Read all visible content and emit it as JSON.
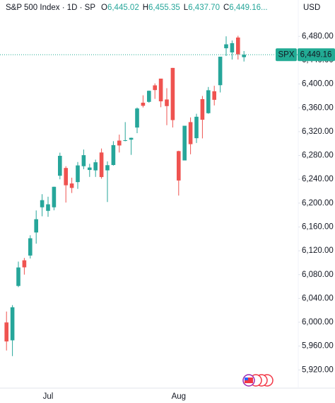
{
  "header": {
    "symbol": "S&P 500 Index · 1D · SP",
    "ohlc": [
      {
        "key": "O",
        "value": "6,445.02"
      },
      {
        "key": "H",
        "value": "6,455.35"
      },
      {
        "key": "L",
        "value": "6,437.70"
      },
      {
        "key": "C",
        "value": "6,449.16..."
      }
    ],
    "currency": "USD"
  },
  "chart_data": {
    "type": "candlestick",
    "categories": [
      null,
      null,
      null,
      null,
      null,
      null,
      null,
      "Jul",
      null,
      null,
      null,
      null,
      null,
      null,
      null,
      null,
      null,
      null,
      null,
      null,
      null,
      null,
      null,
      null,
      null,
      null,
      null,
      null,
      null,
      "Aug",
      null,
      null,
      null,
      null,
      null,
      null,
      null,
      null,
      null,
      null,
      null
    ],
    "open": [
      5999.7,
      5969.7,
      6061,
      6104,
      6112,
      6150.7,
      6193,
      6187,
      6193,
      6246,
      6259,
      6233,
      6235.3,
      6262,
      6255.7,
      6255,
      6285,
      6255,
      6264,
      6305,
      6304.7,
      6306.6,
      6326.9,
      6368.6,
      6370,
      6397.7,
      6409,
      6374,
      6427,
      6287.3,
      6271.7,
      6336,
      6309,
      6374.6,
      6351,
      6387.8,
      6398,
      6460,
      6453,
      6478,
      6445.02
    ],
    "high": [
      6018,
      6028.8,
      6101.8,
      6108,
      6146,
      6187.7,
      6215,
      6210.8,
      6227.6,
      6284.7,
      6262,
      6242.7,
      6269,
      6290,
      6266,
      6273,
      6291.7,
      6270,
      6304,
      6315,
      6336,
      6310,
      6360.6,
      6381,
      6389,
      6401,
      6409,
      6393,
      6427,
      6288,
      6329,
      6343.9,
      6350,
      6379.9,
      6395,
      6397,
      6445.8,
      6480,
      6473,
      6481,
      6455.35
    ],
    "low": [
      5952.6,
      5943.2,
      6059,
      6080,
      6107,
      6132,
      6177.9,
      6177,
      6188,
      6240,
      6201,
      6217,
      6224,
      6257,
      6244,
      6244,
      6241,
      6201.8,
      6263,
      6285,
      6303.8,
      6281,
      6317.5,
      6360.6,
      6368.6,
      6375,
      6361,
      6330.9,
      6327,
      6212.7,
      6271.7,
      6282,
      6300.9,
      6308.7,
      6350,
      6364,
      6385.8,
      6447,
      6441,
      6441,
      6437.7
    ],
    "close": [
      5967.8,
      6025.2,
      6092,
      6092.2,
      6141,
      6173,
      6205,
      6198,
      6227.4,
      6279.4,
      6229.98,
      6225.5,
      6263.3,
      6280.5,
      6259.75,
      6268.6,
      6243.8,
      6263.7,
      6297.4,
      6296.8,
      6305.6,
      6309.6,
      6358.9,
      6363.4,
      6388.6,
      6389.8,
      6370.9,
      6362.9,
      6339.4,
      6238,
      6329.9,
      6299,
      6345,
      6340,
      6389.5,
      6373.45,
      6445.8,
      6466.6,
      6468.5,
      6449.8,
      6449.16
    ],
    "up_color": "#26a69a",
    "down_color": "#ef5350",
    "ylim": [
      5893,
      6541
    ],
    "yticks": [
      {
        "value": 5920,
        "label": "5,920.00"
      },
      {
        "value": 5960,
        "label": "5,960.00"
      },
      {
        "value": 6000,
        "label": "6,000.00"
      },
      {
        "value": 6040,
        "label": "6,040.00"
      },
      {
        "value": 6080,
        "label": "6,080.00"
      },
      {
        "value": 6120,
        "label": "6,120.00"
      },
      {
        "value": 6160,
        "label": "6,160.00"
      },
      {
        "value": 6200,
        "label": "6,200.00"
      },
      {
        "value": 6240,
        "label": "6,240.00"
      },
      {
        "value": 6280,
        "label": "6,280.00"
      },
      {
        "value": 6320,
        "label": "6,320.00"
      },
      {
        "value": 6360,
        "label": "6,360.00"
      },
      {
        "value": 6400,
        "label": "6,400.00"
      },
      {
        "value": 6440,
        "label": "6,440.00"
      },
      {
        "value": 6480,
        "label": "6,480.00"
      }
    ],
    "grid": false,
    "last_price": {
      "name": "SPX",
      "value": 6449.16,
      "label": "6,449.16",
      "color": "#22ab94"
    }
  }
}
